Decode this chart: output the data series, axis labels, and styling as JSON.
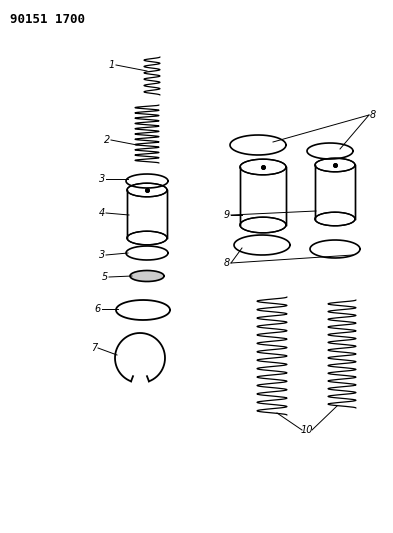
{
  "title": "90151 1700",
  "bg_color": "#ffffff",
  "line_color": "#000000",
  "fig_width": 3.93,
  "fig_height": 5.33,
  "dpi": 100
}
